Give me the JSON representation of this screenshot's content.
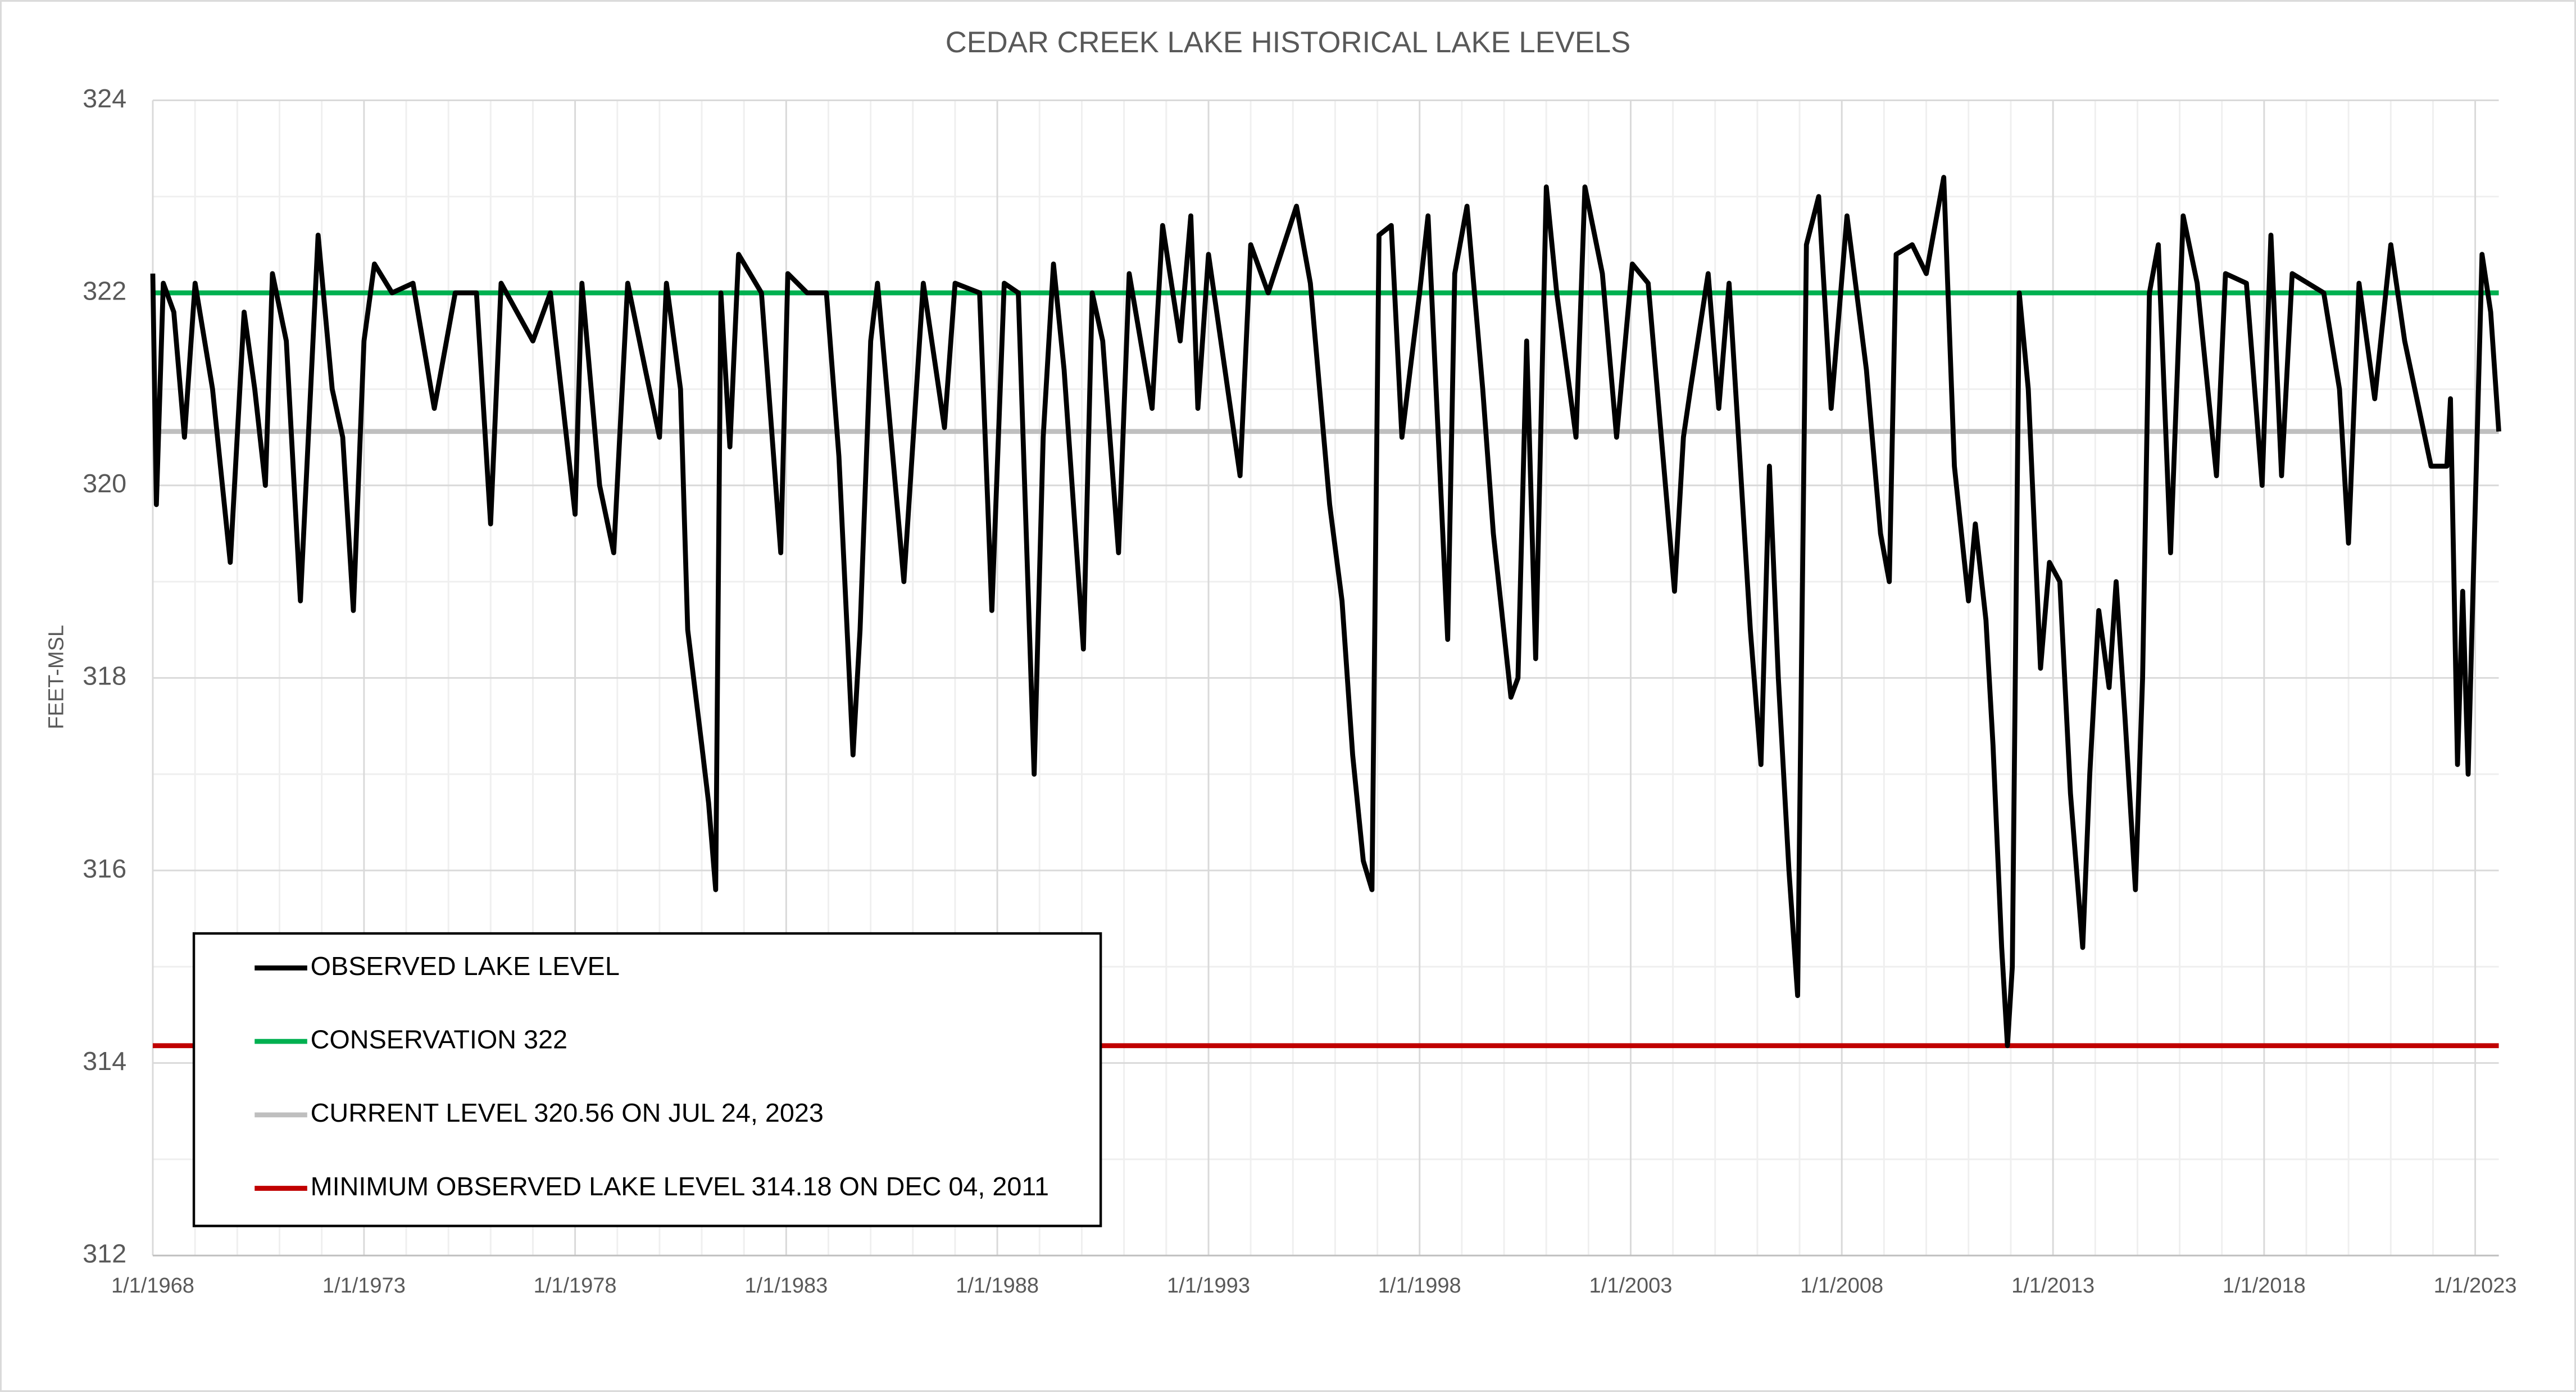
{
  "chart_data": {
    "type": "line",
    "title": "CEDAR CREEK LAKE HISTORICAL LAKE LEVELS",
    "y_label": "FEET-MSL",
    "x": [
      "1968-01-01",
      "1968-02-01",
      "1968-04-01",
      "1968-07-01",
      "1968-10-01",
      "1969-01-01",
      "1969-06-01",
      "1969-11-01",
      "1970-03-01",
      "1970-06-01",
      "1970-09-01",
      "1970-11-01",
      "1971-03-01",
      "1971-07-01",
      "1971-12-01",
      "1972-04-01",
      "1972-07-01",
      "1972-10-01",
      "1973-01-01",
      "1973-04-01",
      "1973-09-01",
      "1974-03-01",
      "1974-09-01",
      "1975-03-01",
      "1975-09-01",
      "1976-01-01",
      "1976-04-01",
      "1977-01-01",
      "1977-06-01",
      "1978-01-01",
      "1978-03-01",
      "1978-08-01",
      "1978-12-01",
      "1979-04-01",
      "1979-09-01",
      "1980-01-01",
      "1980-03-01",
      "1980-07-01",
      "1980-09-01",
      "1981-01-01",
      "1981-03-01",
      "1981-05-01",
      "1981-06-15",
      "1981-09-01",
      "1981-11-15",
      "1982-06-01",
      "1982-11-15",
      "1983-01-15",
      "1983-07-01",
      "1983-12-15",
      "1984-04-01",
      "1984-08-01",
      "1984-10-01",
      "1985-01-01",
      "1985-03-01",
      "1985-10-15",
      "1986-04-01",
      "1986-10-01",
      "1987-01-01",
      "1987-08-01",
      "1987-11-15",
      "1988-03-01",
      "1988-07-01",
      "1988-11-15",
      "1989-02-01",
      "1989-05-01",
      "1989-08-01",
      "1990-01-15",
      "1990-04-01",
      "1990-07-01",
      "1990-11-15",
      "1991-02-15",
      "1991-09-01",
      "1991-12-01",
      "1992-05-01",
      "1992-08-01",
      "1992-10-01",
      "1993-01-01",
      "1993-10-01",
      "1994-01-01",
      "1994-06-01",
      "1995-02-01",
      "1995-06-01",
      "1995-11-15",
      "1996-03-01",
      "1996-06-01",
      "1996-09-01",
      "1996-11-15",
      "1997-01-15",
      "1997-05-01",
      "1997-08-01",
      "1998-01-01",
      "1998-03-15",
      "1998-09-01",
      "1998-11-01",
      "1999-02-15",
      "1999-07-01",
      "1999-10-01",
      "2000-03-01",
      "2000-05-01",
      "2000-07-15",
      "2000-10-01",
      "2001-01-01",
      "2001-04-01",
      "2001-09-15",
      "2001-12-01",
      "2002-05-01",
      "2002-09-01",
      "2003-01-15",
      "2003-06-01",
      "2004-01-15",
      "2004-04-01",
      "2004-06-01",
      "2004-11-01",
      "2005-02-01",
      "2005-05-01",
      "2005-08-01",
      "2005-11-01",
      "2006-02-01",
      "2006-04-15",
      "2006-07-01",
      "2006-10-01",
      "2006-12-15",
      "2007-03-01",
      "2007-06-15",
      "2007-10-01",
      "2008-02-15",
      "2008-08-01",
      "2008-12-01",
      "2009-02-15",
      "2009-04-15",
      "2009-09-01",
      "2010-01-01",
      "2010-06-01",
      "2010-09-01",
      "2011-01-01",
      "2011-03-01",
      "2011-06-01",
      "2011-08-01",
      "2011-10-15",
      "2011-12-04",
      "2012-01-15",
      "2012-03-15",
      "2012-06-01",
      "2012-09-15",
      "2012-12-01",
      "2013-03-01",
      "2013-06-01",
      "2013-09-15",
      "2013-11-15",
      "2014-02-01",
      "2014-05-01",
      "2014-07-01",
      "2014-09-15",
      "2014-12-15",
      "2015-02-15",
      "2015-04-15",
      "2015-07-01",
      "2015-10-15",
      "2016-02-01",
      "2016-06-01",
      "2016-11-15",
      "2017-02-01",
      "2017-08-01",
      "2017-12-15",
      "2018-03-01",
      "2018-06-01",
      "2018-09-01",
      "2019-06-01",
      "2019-10-15",
      "2020-01-01",
      "2020-04-01",
      "2020-08-15",
      "2021-01-01",
      "2021-05-01",
      "2021-12-15",
      "2022-05-01",
      "2022-06-01",
      "2022-08-01",
      "2022-09-15",
      "2022-11-01",
      "2022-12-15",
      "2023-03-01",
      "2023-05-15",
      "2023-07-24"
    ],
    "series": [
      {
        "name": "OBSERVED LAKE LEVEL",
        "color": "#000000",
        "values": [
          322.2,
          319.8,
          322.1,
          321.8,
          320.5,
          322.1,
          321.0,
          319.2,
          321.8,
          321.0,
          320.0,
          322.2,
          321.5,
          318.8,
          322.6,
          321.0,
          320.5,
          318.7,
          321.5,
          322.3,
          322.0,
          322.1,
          320.8,
          322.0,
          322.0,
          319.6,
          322.1,
          321.5,
          322.0,
          319.7,
          322.1,
          320.0,
          319.3,
          322.1,
          321.2,
          320.5,
          322.1,
          321.0,
          318.5,
          317.3,
          316.7,
          315.8,
          322.0,
          320.4,
          322.4,
          322.0,
          319.3,
          322.2,
          322.0,
          322.0,
          320.3,
          317.2,
          318.5,
          321.5,
          322.1,
          319.0,
          322.1,
          320.6,
          322.1,
          322.0,
          318.7,
          322.1,
          322.0,
          317.0,
          320.5,
          322.3,
          321.2,
          318.3,
          322.0,
          321.5,
          319.3,
          322.2,
          320.8,
          322.7,
          321.5,
          322.8,
          320.8,
          322.4,
          320.1,
          322.5,
          322.0,
          322.9,
          322.1,
          319.8,
          318.8,
          317.2,
          316.1,
          315.8,
          322.6,
          322.7,
          320.5,
          322.0,
          322.8,
          318.4,
          322.2,
          322.9,
          321.0,
          319.5,
          317.8,
          318.0,
          321.5,
          318.2,
          323.1,
          322.0,
          320.5,
          323.1,
          322.2,
          320.5,
          322.3,
          322.1,
          318.9,
          320.5,
          321.0,
          322.2,
          320.8,
          322.1,
          320.3,
          318.5,
          317.1,
          320.2,
          318.0,
          316.0,
          314.7,
          322.5,
          323.0,
          320.8,
          322.8,
          321.2,
          319.5,
          319.0,
          322.4,
          322.5,
          322.2,
          323.2,
          320.2,
          318.8,
          319.6,
          318.6,
          317.3,
          315.2,
          314.18,
          315.0,
          322.0,
          321.0,
          318.1,
          319.2,
          319.0,
          316.8,
          315.2,
          317.0,
          318.7,
          317.9,
          319.0,
          317.6,
          315.8,
          318.0,
          322.0,
          322.5,
          319.3,
          322.8,
          322.1,
          320.1,
          322.2,
          322.1,
          320.0,
          322.6,
          320.1,
          322.2,
          322.0,
          321.0,
          319.4,
          322.1,
          320.9,
          322.5,
          321.5,
          320.2,
          320.2,
          320.9,
          317.1,
          318.9,
          317.0,
          319.0,
          322.4,
          321.8,
          320.56
        ]
      }
    ],
    "reference_lines": [
      {
        "name": "CONSERVATION 322",
        "value": 322,
        "color": "#00b050"
      },
      {
        "name": "CURRENT LEVEL 320.56 ON JUL 24, 2023",
        "value": 320.56,
        "color": "#bfbfbf"
      },
      {
        "name": "MINIMUM OBSERVED LAKE LEVEL 314.18 ON DEC 04, 2011",
        "value": 314.18,
        "color": "#c00000"
      }
    ],
    "xlim": [
      "1968-01-01",
      "2023-07-24"
    ],
    "xticks": [
      {
        "value": "1968-01-01",
        "label": "1/1/1968"
      },
      {
        "value": "1973-01-01",
        "label": "1/1/1973"
      },
      {
        "value": "1978-01-01",
        "label": "1/1/1978"
      },
      {
        "value": "1983-01-01",
        "label": "1/1/1983"
      },
      {
        "value": "1988-01-01",
        "label": "1/1/1988"
      },
      {
        "value": "1993-01-01",
        "label": "1/1/1993"
      },
      {
        "value": "1998-01-01",
        "label": "1/1/1998"
      },
      {
        "value": "2003-01-01",
        "label": "1/1/2003"
      },
      {
        "value": "2008-01-01",
        "label": "1/1/2008"
      },
      {
        "value": "2013-01-01",
        "label": "1/1/2013"
      },
      {
        "value": "2018-01-01",
        "label": "1/1/2018"
      },
      {
        "value": "2023-01-01",
        "label": "1/1/2023"
      }
    ],
    "ylim": [
      312,
      324
    ],
    "yticks": [
      312,
      314,
      316,
      318,
      320,
      322,
      324
    ],
    "grid": true,
    "legend": "lower left"
  }
}
